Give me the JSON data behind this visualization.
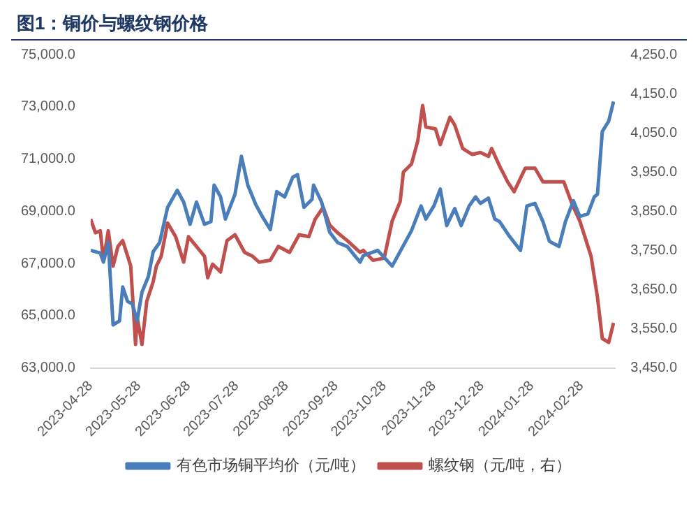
{
  "chart_data": {
    "type": "line",
    "title": "图1：铜价与螺纹钢价格",
    "xlim": [
      "2023-04-28",
      "2024-03-20"
    ],
    "xticks": [
      "2023-04-28",
      "2023-05-28",
      "2023-06-28",
      "2023-07-28",
      "2023-08-28",
      "2023-09-28",
      "2023-10-28",
      "2023-11-28",
      "2023-12-28",
      "2024-01-28",
      "2024-02-28"
    ],
    "ylim": [
      63000,
      75000
    ],
    "yticks": [
      {
        "value": 63000,
        "label": "63,000.0"
      },
      {
        "value": 65000,
        "label": "65,000.0"
      },
      {
        "value": 67000,
        "label": "67,000.0"
      },
      {
        "value": 69000,
        "label": "69,000.0"
      },
      {
        "value": 71000,
        "label": "71,000.0"
      },
      {
        "value": 73000,
        "label": "73,000.0"
      },
      {
        "value": 75000,
        "label": "75,000.0"
      }
    ],
    "y2lim": [
      3450,
      4250
    ],
    "y2ticks": [
      {
        "value": 3450,
        "label": "3,450.0"
      },
      {
        "value": 3550,
        "label": "3,550.0"
      },
      {
        "value": 3650,
        "label": "3,650.0"
      },
      {
        "value": 3750,
        "label": "3,750.0"
      },
      {
        "value": 3850,
        "label": "3,850.0"
      },
      {
        "value": 3950,
        "label": "3,950.0"
      },
      {
        "value": 4050,
        "label": "4,050.0"
      },
      {
        "value": 4150,
        "label": "4,150.0"
      },
      {
        "value": 4250,
        "label": "4,250.0"
      }
    ],
    "grid": false,
    "legend": "bottom",
    "marker": "none",
    "line_style": "solid",
    "series": [
      {
        "name": "有色市场铜平均价（元/吨）",
        "color": "#4a7ebb",
        "x": [
          "2023-04-28",
          "2023-05-04",
          "2023-05-06",
          "2023-05-09",
          "2023-05-12",
          "2023-05-16",
          "2023-05-18",
          "2023-05-21",
          "2023-05-24",
          "2023-05-27",
          "2023-05-30",
          "2023-06-03",
          "2023-06-06",
          "2023-06-10",
          "2023-06-15",
          "2023-06-21",
          "2023-06-25",
          "2023-06-29",
          "2023-07-03",
          "2023-07-08",
          "2023-07-12",
          "2023-07-14",
          "2023-07-18",
          "2023-07-21",
          "2023-07-27",
          "2023-07-31",
          "2023-08-04",
          "2023-08-09",
          "2023-08-13",
          "2023-08-18",
          "2023-08-22",
          "2023-08-27",
          "2023-09-01",
          "2023-09-04",
          "2023-09-08",
          "2023-09-13",
          "2023-09-14",
          "2023-09-19",
          "2023-09-24",
          "2023-09-29",
          "2023-10-05",
          "2023-10-13",
          "2023-10-15",
          "2023-10-24",
          "2023-11-02",
          "2023-11-14",
          "2023-11-20",
          "2023-11-23",
          "2023-11-28",
          "2023-12-02",
          "2023-12-06",
          "2023-12-11",
          "2023-12-15",
          "2023-12-20",
          "2023-12-24",
          "2023-12-27",
          "2024-01-01",
          "2024-01-05",
          "2024-01-08",
          "2024-01-14",
          "2024-01-21",
          "2024-01-25",
          "2024-01-30",
          "2024-02-04",
          "2024-02-08",
          "2024-02-14",
          "2024-02-18",
          "2024-02-23",
          "2024-02-27",
          "2024-03-03",
          "2024-03-07",
          "2024-03-09",
          "2024-03-12",
          "2024-03-16",
          "2024-03-19"
        ],
        "values": [
          67500,
          67400,
          67050,
          67800,
          64650,
          64800,
          66100,
          65550,
          65450,
          64800,
          65900,
          66500,
          67450,
          67800,
          69150,
          69800,
          69350,
          68500,
          69350,
          68500,
          68600,
          70000,
          69550,
          68700,
          69650,
          71100,
          70000,
          69250,
          68800,
          68300,
          69750,
          69550,
          70300,
          70400,
          69150,
          69450,
          70000,
          69350,
          68200,
          67800,
          67650,
          67050,
          67300,
          67500,
          66900,
          68250,
          69200,
          68700,
          69200,
          69850,
          68450,
          69100,
          68450,
          69200,
          69550,
          69300,
          69500,
          68700,
          68600,
          68050,
          67500,
          69200,
          69300,
          68600,
          67850,
          67650,
          68600,
          69400,
          68800,
          68900,
          69550,
          69650,
          72050,
          72450,
          73200
        ]
      },
      {
        "name": "螺纹钢（元/吨，右）",
        "color": "#c0504d",
        "axis": "y2",
        "x": [
          "2023-04-28",
          "2023-05-01",
          "2023-05-04",
          "2023-05-06",
          "2023-05-09",
          "2023-05-12",
          "2023-05-15",
          "2023-05-18",
          "2023-05-23",
          "2023-05-26",
          "2023-05-27",
          "2023-05-30",
          "2023-06-02",
          "2023-06-06",
          "2023-06-08",
          "2023-06-11",
          "2023-06-15",
          "2023-06-20",
          "2023-06-25",
          "2023-06-28",
          "2023-07-03",
          "2023-07-08",
          "2023-07-10",
          "2023-07-13",
          "2023-07-18",
          "2023-07-22",
          "2023-07-27",
          "2023-08-02",
          "2023-08-07",
          "2023-08-11",
          "2023-08-18",
          "2023-08-23",
          "2023-08-30",
          "2023-09-05",
          "2023-09-11",
          "2023-09-15",
          "2023-09-20",
          "2023-09-24",
          "2023-09-29",
          "2023-10-05",
          "2023-10-13",
          "2023-10-15",
          "2023-10-21",
          "2023-10-28",
          "2023-11-02",
          "2023-11-07",
          "2023-11-09",
          "2023-11-14",
          "2023-11-18",
          "2023-11-21",
          "2023-11-23",
          "2023-11-29",
          "2023-12-02",
          "2023-12-08",
          "2023-12-11",
          "2023-12-16",
          "2023-12-22",
          "2023-12-27",
          "2024-01-01",
          "2024-01-03",
          "2024-01-08",
          "2024-01-13",
          "2024-01-17",
          "2024-01-24",
          "2024-01-30",
          "2024-02-04",
          "2024-02-11",
          "2024-02-17",
          "2024-02-22",
          "2024-02-27",
          "2024-03-05",
          "2024-03-09",
          "2024-03-12",
          "2024-03-16",
          "2024-03-19"
        ],
        "values": [
          3830,
          3795,
          3800,
          3725,
          3800,
          3710,
          3760,
          3775,
          3710,
          3510,
          3580,
          3510,
          3620,
          3670,
          3710,
          3735,
          3820,
          3785,
          3720,
          3785,
          3760,
          3735,
          3680,
          3715,
          3695,
          3775,
          3790,
          3745,
          3735,
          3720,
          3725,
          3760,
          3745,
          3790,
          3785,
          3830,
          3860,
          3815,
          3795,
          3775,
          3745,
          3750,
          3725,
          3730,
          3825,
          3875,
          3950,
          3970,
          4030,
          4120,
          4065,
          4060,
          4020,
          4090,
          4070,
          4010,
          3995,
          4000,
          3990,
          4010,
          3965,
          3925,
          3900,
          3960,
          3960,
          3925,
          3925,
          3925,
          3870,
          3825,
          3735,
          3630,
          3525,
          3515,
          3565
        ]
      }
    ]
  }
}
